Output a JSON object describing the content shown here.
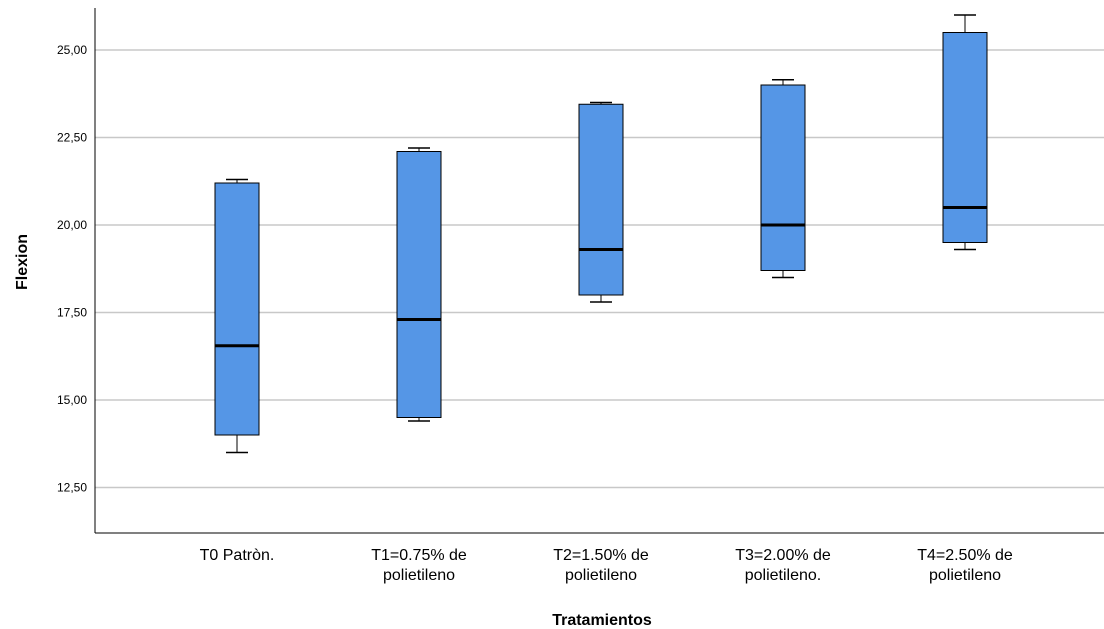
{
  "chart_data": {
    "type": "boxplot",
    "xlabel": "Tratamientos",
    "ylabel": "Flexion",
    "ylim": [
      11.2,
      26.2
    ],
    "yticks": [
      12.5,
      15.0,
      17.5,
      20.0,
      22.5,
      25.0
    ],
    "ytick_labels": [
      "12,50",
      "15,00",
      "17,50",
      "20,00",
      "22,50",
      "25,00"
    ],
    "grid": "horizontal",
    "box_color": "#5596e6",
    "categories": [
      {
        "line1": "T0 Patròn.",
        "line2": "",
        "min": 13.5,
        "q1": 14.0,
        "median": 16.55,
        "q3": 21.2,
        "max": 21.3
      },
      {
        "line1": "T1=0.75% de",
        "line2": "polietileno",
        "min": 14.4,
        "q1": 14.5,
        "median": 17.3,
        "q3": 22.1,
        "max": 22.2
      },
      {
        "line1": "T2=1.50% de",
        "line2": "polietileno",
        "min": 17.8,
        "q1": 18.0,
        "median": 19.3,
        "q3": 23.45,
        "max": 23.5
      },
      {
        "line1": "T3=2.00% de",
        "line2": "polietileno.",
        "min": 18.5,
        "q1": 18.7,
        "median": 20.0,
        "q3": 24.0,
        "max": 24.15
      },
      {
        "line1": "T4=2.50% de",
        "line2": "polietileno",
        "min": 19.3,
        "q1": 19.5,
        "median": 20.5,
        "q3": 25.5,
        "max": 26.0
      }
    ]
  }
}
